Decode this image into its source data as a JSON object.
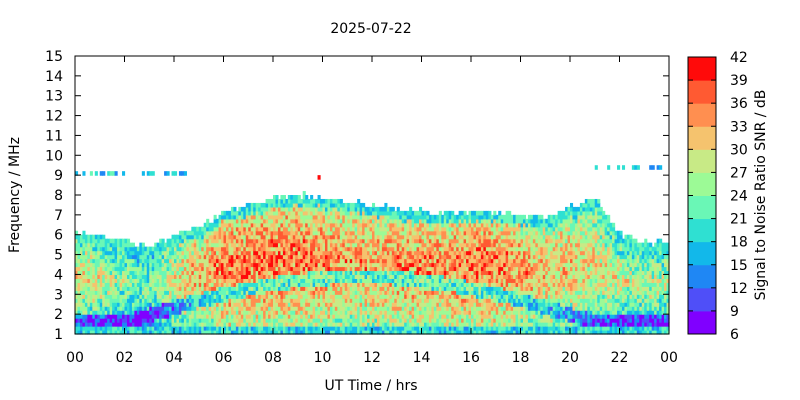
{
  "chart_data": {
    "type": "heatmap",
    "title": "2025-07-22",
    "xlabel": "UT Time / hrs",
    "ylabel": "Frequency / MHz",
    "colorbar_label": "Signal to Noise Ratio SNR / dB",
    "xlim": [
      0,
      24
    ],
    "ylim": [
      1,
      15
    ],
    "x_ticks": [
      "00",
      "02",
      "04",
      "06",
      "08",
      "10",
      "12",
      "14",
      "16",
      "18",
      "20",
      "22",
      "00"
    ],
    "y_ticks": [
      "1",
      "2",
      "3",
      "4",
      "5",
      "6",
      "7",
      "8",
      "9",
      "10",
      "11",
      "12",
      "13",
      "14",
      "15"
    ],
    "colorbar_ticks": [
      "6",
      "9",
      "12",
      "15",
      "18",
      "21",
      "24",
      "27",
      "30",
      "33",
      "36",
      "39",
      "42"
    ],
    "colorbar_range": [
      6,
      42
    ],
    "colorbar_colors": [
      "#8000ff",
      "#4f4ff8",
      "#1f87f4",
      "#12b8ea",
      "#2fe0d2",
      "#6af7b6",
      "#9cfa96",
      "#c8ea86",
      "#f5c36e",
      "#ff8f50",
      "#ff5a32",
      "#ff0a0a"
    ],
    "grid": false,
    "x_bins": [
      0,
      1,
      2,
      3,
      4,
      5,
      6,
      7,
      8,
      9,
      10,
      11,
      12,
      13,
      14,
      15,
      16,
      17,
      18,
      19,
      20,
      21,
      22,
      23
    ],
    "upper_frequency_limit_MHz": [
      6.1,
      5.9,
      5.6,
      5.3,
      5.9,
      6.3,
      7.1,
      7.4,
      7.7,
      7.9,
      7.8,
      7.6,
      7.4,
      7.2,
      7.1,
      7.0,
      7.1,
      7.0,
      6.9,
      6.8,
      7.3,
      7.7,
      5.9,
      5.5
    ],
    "peak_snr_dB": [
      36,
      34,
      31,
      30,
      36,
      39,
      42,
      42,
      42,
      42,
      41,
      40,
      40,
      41,
      41,
      41,
      42,
      42,
      40,
      39,
      38,
      36,
      34,
      33
    ],
    "sporadic_bands": [
      {
        "x_from": 0.0,
        "x_to": 4.5,
        "frequency_MHz": 9.0,
        "snr_dB": 18
      },
      {
        "x_from": 9.6,
        "x_to": 9.9,
        "frequency_MHz": 8.8,
        "snr_dB": 42
      },
      {
        "x_from": 21.0,
        "x_to": 24.0,
        "frequency_MHz": 9.3,
        "snr_dB": 18
      }
    ]
  }
}
